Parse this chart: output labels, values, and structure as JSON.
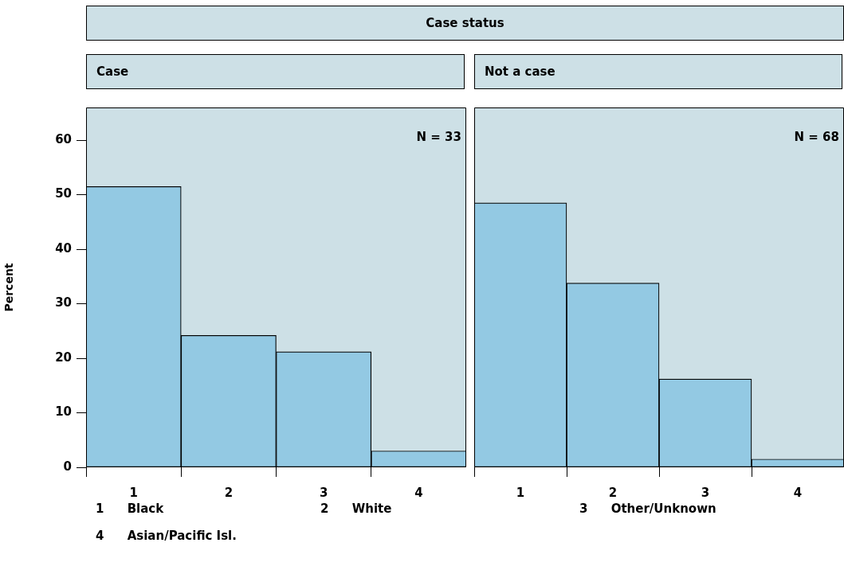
{
  "chart_data": [
    {
      "type": "bar",
      "title": "Case status",
      "subtitle": "Case",
      "ylabel": "Percent",
      "categories": [
        "1",
        "2",
        "3",
        "4"
      ],
      "values": [
        51.5,
        24.2,
        21.2,
        3.0
      ],
      "color": "#93c9e3",
      "ylim": [
        0,
        66
      ],
      "yticks": [
        0,
        10,
        20,
        30,
        40,
        50,
        60
      ],
      "grid": false,
      "legend": false,
      "annotations": [
        "N = 33",
        "1 Black",
        "2 White",
        "3 Other/Unknown",
        "4 Asian/Pacific Isl."
      ]
    },
    {
      "type": "bar",
      "subtitle": "Not a case",
      "categories": [
        "1",
        "2",
        "3",
        "4"
      ],
      "values": [
        48.5,
        33.8,
        16.2,
        1.5
      ],
      "color": "#93c9e3",
      "ylim": [
        0,
        66
      ],
      "yticks": [
        0,
        10,
        20,
        30,
        40,
        50,
        60
      ],
      "grid": false,
      "legend": false,
      "tick_labels": "x",
      "annotations": [
        "N = 68"
      ]
    }
  ]
}
